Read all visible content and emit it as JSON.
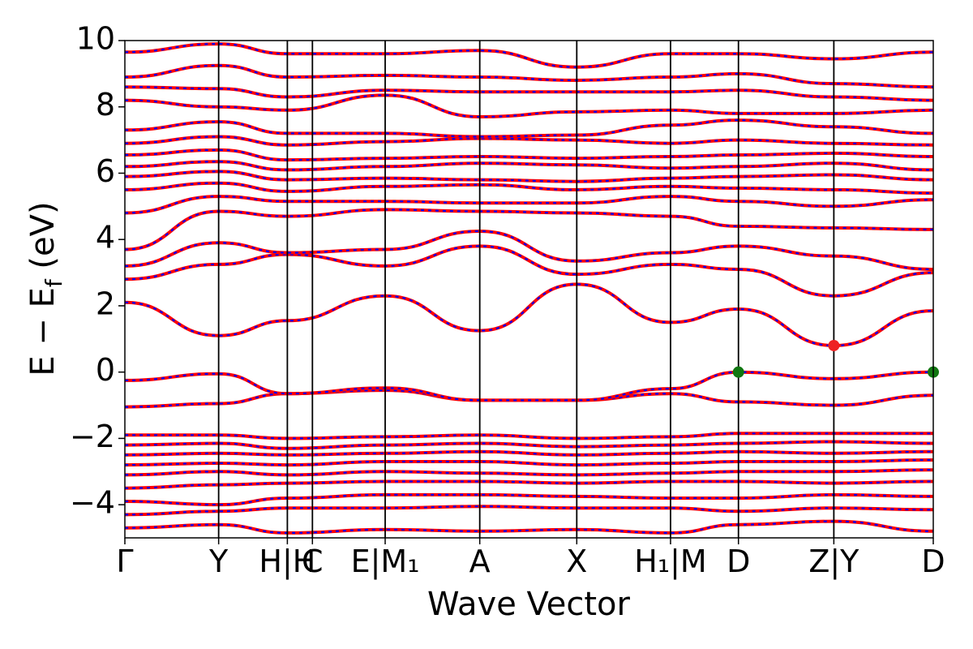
{
  "chart_data": {
    "type": "line",
    "title": "",
    "xlabel": "Wave Vector",
    "ylabel": "E − E_f (eV)",
    "ylabel_main": "E − E",
    "ylabel_sub": "f",
    "ylabel_unit": " (eV)",
    "ylim": [
      -5,
      10
    ],
    "yticks": [
      10,
      8,
      6,
      4,
      2,
      0,
      -2,
      -4
    ],
    "ytick_labels": [
      "10",
      "8",
      "6",
      "4",
      "2",
      "0",
      "−2",
      "−4"
    ],
    "grid": false,
    "legend": "none",
    "kpath": [
      {
        "label": "Γ",
        "x": 0.0
      },
      {
        "label": "Y",
        "x": 0.116
      },
      {
        "label": "H|H",
        "x": 0.201
      },
      {
        "label": "C",
        "x": 0.232
      },
      {
        "label": "E|M₁",
        "x": 0.322
      },
      {
        "label": "A",
        "x": 0.439
      },
      {
        "label": "X",
        "x": 0.559
      },
      {
        "label": "H₁|M",
        "x": 0.675
      },
      {
        "label": "D",
        "x": 0.759
      },
      {
        "label": "Z|Y",
        "x": 0.877
      },
      {
        "label": "D",
        "x": 1.0
      }
    ],
    "segment_breaks": [
      0.201,
      0.322,
      0.675,
      0.877
    ],
    "series": [
      {
        "name": "",
        "color": "#ff0000",
        "style": "solid"
      },
      {
        "name": "",
        "color": "#0000ff",
        "style": "dashed"
      }
    ],
    "bands": [
      [
        [
          0,
          -1.05
        ],
        [
          0.116,
          -0.95
        ],
        [
          0.201,
          -0.65
        ],
        [
          0.322,
          -0.55
        ],
        [
          0.439,
          -0.85
        ],
        [
          0.559,
          -0.85
        ],
        [
          0.675,
          -0.65
        ],
        [
          0.759,
          -0.9
        ],
        [
          0.877,
          -1.0
        ],
        [
          1.0,
          -0.7
        ]
      ],
      [
        [
          0,
          -0.25
        ],
        [
          0.116,
          -0.05
        ],
        [
          0.201,
          -0.65
        ],
        [
          0.322,
          -0.48
        ],
        [
          0.439,
          -0.85
        ],
        [
          0.559,
          -0.85
        ],
        [
          0.675,
          -0.5
        ],
        [
          0.759,
          0.0
        ],
        [
          0.877,
          -0.2
        ],
        [
          1.0,
          0.0
        ]
      ],
      [
        [
          0,
          2.1
        ],
        [
          0.116,
          1.1
        ],
        [
          0.201,
          1.55
        ],
        [
          0.322,
          2.3
        ],
        [
          0.439,
          1.25
        ],
        [
          0.559,
          2.65
        ],
        [
          0.675,
          1.5
        ],
        [
          0.759,
          1.9
        ],
        [
          0.877,
          0.8
        ],
        [
          1.0,
          1.85
        ]
      ],
      [
        [
          0,
          2.8
        ],
        [
          0.116,
          3.25
        ],
        [
          0.201,
          3.55
        ],
        [
          0.322,
          3.2
        ],
        [
          0.439,
          3.8
        ],
        [
          0.559,
          2.95
        ],
        [
          0.675,
          3.25
        ],
        [
          0.759,
          3.1
        ],
        [
          0.877,
          2.3
        ],
        [
          1.0,
          3.0
        ]
      ],
      [
        [
          0,
          3.2
        ],
        [
          0.116,
          3.9
        ],
        [
          0.201,
          3.6
        ],
        [
          0.322,
          3.7
        ],
        [
          0.439,
          4.25
        ],
        [
          0.559,
          3.35
        ],
        [
          0.675,
          3.6
        ],
        [
          0.759,
          3.8
        ],
        [
          0.877,
          3.5
        ],
        [
          1.0,
          3.1
        ]
      ],
      [
        [
          0,
          3.7
        ],
        [
          0.116,
          4.85
        ],
        [
          0.201,
          4.7
        ],
        [
          0.322,
          4.9
        ],
        [
          0.439,
          4.85
        ],
        [
          0.559,
          4.8
        ],
        [
          0.675,
          4.7
        ],
        [
          0.759,
          4.4
        ],
        [
          0.877,
          4.35
        ],
        [
          1.0,
          4.3
        ]
      ],
      [
        [
          0,
          4.8
        ],
        [
          0.116,
          5.3
        ],
        [
          0.201,
          5.15
        ],
        [
          0.322,
          5.15
        ],
        [
          0.439,
          5.1
        ],
        [
          0.559,
          5.1
        ],
        [
          0.675,
          5.3
        ],
        [
          0.759,
          5.15
        ],
        [
          0.877,
          5.0
        ],
        [
          1.0,
          5.2
        ]
      ],
      [
        [
          0,
          5.5
        ],
        [
          0.116,
          5.7
        ],
        [
          0.201,
          5.45
        ],
        [
          0.322,
          5.6
        ],
        [
          0.439,
          5.65
        ],
        [
          0.559,
          5.5
        ],
        [
          0.675,
          5.6
        ],
        [
          0.759,
          5.55
        ],
        [
          0.877,
          5.5
        ],
        [
          1.0,
          5.4
        ]
      ],
      [
        [
          0,
          5.9
        ],
        [
          0.116,
          6.05
        ],
        [
          0.201,
          5.8
        ],
        [
          0.322,
          5.85
        ],
        [
          0.439,
          5.8
        ],
        [
          0.559,
          5.75
        ],
        [
          0.675,
          5.85
        ],
        [
          0.759,
          5.9
        ],
        [
          0.877,
          5.95
        ],
        [
          1.0,
          5.8
        ]
      ],
      [
        [
          0,
          6.2
        ],
        [
          0.116,
          6.35
        ],
        [
          0.201,
          6.1
        ],
        [
          0.322,
          6.2
        ],
        [
          0.439,
          6.3
        ],
        [
          0.559,
          6.25
        ],
        [
          0.675,
          6.15
        ],
        [
          0.759,
          6.2
        ],
        [
          0.877,
          6.3
        ],
        [
          1.0,
          6.1
        ]
      ],
      [
        [
          0,
          6.55
        ],
        [
          0.116,
          6.7
        ],
        [
          0.201,
          6.4
        ],
        [
          0.322,
          6.45
        ],
        [
          0.439,
          6.5
        ],
        [
          0.559,
          6.45
        ],
        [
          0.675,
          6.5
        ],
        [
          0.759,
          6.55
        ],
        [
          0.877,
          6.6
        ],
        [
          1.0,
          6.5
        ]
      ],
      [
        [
          0,
          6.9
        ],
        [
          0.116,
          7.1
        ],
        [
          0.201,
          6.85
        ],
        [
          0.322,
          6.95
        ],
        [
          0.439,
          7.05
        ],
        [
          0.559,
          7.0
        ],
        [
          0.675,
          6.9
        ],
        [
          0.759,
          7.0
        ],
        [
          0.877,
          6.9
        ],
        [
          1.0,
          6.85
        ]
      ],
      [
        [
          0,
          7.3
        ],
        [
          0.116,
          7.55
        ],
        [
          0.201,
          7.2
        ],
        [
          0.322,
          7.2
        ],
        [
          0.439,
          7.1
        ],
        [
          0.559,
          7.15
        ],
        [
          0.675,
          7.45
        ],
        [
          0.759,
          7.6
        ],
        [
          0.877,
          7.4
        ],
        [
          1.0,
          7.2
        ]
      ],
      [
        [
          0,
          8.2
        ],
        [
          0.116,
          8.0
        ],
        [
          0.201,
          7.9
        ],
        [
          0.322,
          8.35
        ],
        [
          0.439,
          7.7
        ],
        [
          0.559,
          7.85
        ],
        [
          0.675,
          7.9
        ],
        [
          0.759,
          7.8
        ],
        [
          0.877,
          7.8
        ],
        [
          1.0,
          7.9
        ]
      ],
      [
        [
          0,
          8.6
        ],
        [
          0.116,
          8.55
        ],
        [
          0.201,
          8.3
        ],
        [
          0.322,
          8.5
        ],
        [
          0.439,
          8.45
        ],
        [
          0.559,
          8.45
        ],
        [
          0.675,
          8.45
        ],
        [
          0.759,
          8.5
        ],
        [
          0.877,
          8.3
        ],
        [
          1.0,
          8.2
        ]
      ],
      [
        [
          0,
          8.9
        ],
        [
          0.116,
          9.25
        ],
        [
          0.201,
          8.9
        ],
        [
          0.322,
          8.95
        ],
        [
          0.439,
          8.9
        ],
        [
          0.559,
          8.8
        ],
        [
          0.675,
          8.9
        ],
        [
          0.759,
          9.0
        ],
        [
          0.877,
          8.7
        ],
        [
          1.0,
          8.6
        ]
      ],
      [
        [
          0,
          9.65
        ],
        [
          0.116,
          9.9
        ],
        [
          0.201,
          9.6
        ],
        [
          0.322,
          9.6
        ],
        [
          0.439,
          9.7
        ],
        [
          0.559,
          9.2
        ],
        [
          0.675,
          9.6
        ],
        [
          0.759,
          9.6
        ],
        [
          0.877,
          9.45
        ],
        [
          1.0,
          9.65
        ]
      ],
      [
        [
          0,
          -1.9
        ],
        [
          0.116,
          -1.9
        ],
        [
          0.201,
          -2.0
        ],
        [
          0.322,
          -1.95
        ],
        [
          0.439,
          -1.9
        ],
        [
          0.559,
          -2.0
        ],
        [
          0.675,
          -1.95
        ],
        [
          0.759,
          -1.85
        ],
        [
          0.877,
          -1.85
        ],
        [
          1.0,
          -1.85
        ]
      ],
      [
        [
          0,
          -2.2
        ],
        [
          0.116,
          -2.15
        ],
        [
          0.201,
          -2.3
        ],
        [
          0.322,
          -2.2
        ],
        [
          0.439,
          -2.15
        ],
        [
          0.559,
          -2.25
        ],
        [
          0.675,
          -2.2
        ],
        [
          0.759,
          -2.15
        ],
        [
          0.877,
          -2.1
        ],
        [
          1.0,
          -2.15
        ]
      ],
      [
        [
          0,
          -2.5
        ],
        [
          0.116,
          -2.45
        ],
        [
          0.201,
          -2.5
        ],
        [
          0.322,
          -2.45
        ],
        [
          0.439,
          -2.4
        ],
        [
          0.559,
          -2.5
        ],
        [
          0.675,
          -2.45
        ],
        [
          0.759,
          -2.4
        ],
        [
          0.877,
          -2.45
        ],
        [
          1.0,
          -2.4
        ]
      ],
      [
        [
          0,
          -2.8
        ],
        [
          0.116,
          -2.75
        ],
        [
          0.201,
          -2.8
        ],
        [
          0.322,
          -2.7
        ],
        [
          0.439,
          -2.7
        ],
        [
          0.559,
          -2.8
        ],
        [
          0.675,
          -2.75
        ],
        [
          0.759,
          -2.7
        ],
        [
          0.877,
          -2.7
        ],
        [
          1.0,
          -2.65
        ]
      ],
      [
        [
          0,
          -3.1
        ],
        [
          0.116,
          -3.0
        ],
        [
          0.201,
          -3.1
        ],
        [
          0.322,
          -3.0
        ],
        [
          0.439,
          -3.05
        ],
        [
          0.559,
          -3.1
        ],
        [
          0.675,
          -3.05
        ],
        [
          0.759,
          -3.0
        ],
        [
          0.877,
          -3.0
        ],
        [
          1.0,
          -2.95
        ]
      ],
      [
        [
          0,
          -3.5
        ],
        [
          0.116,
          -3.4
        ],
        [
          0.201,
          -3.35
        ],
        [
          0.322,
          -3.3
        ],
        [
          0.439,
          -3.3
        ],
        [
          0.559,
          -3.35
        ],
        [
          0.675,
          -3.3
        ],
        [
          0.759,
          -3.3
        ],
        [
          0.877,
          -3.35
        ],
        [
          1.0,
          -3.3
        ]
      ],
      [
        [
          0,
          -3.9
        ],
        [
          0.116,
          -4.0
        ],
        [
          0.201,
          -3.8
        ],
        [
          0.322,
          -3.7
        ],
        [
          0.439,
          -3.7
        ],
        [
          0.559,
          -3.75
        ],
        [
          0.675,
          -3.8
        ],
        [
          0.759,
          -3.8
        ],
        [
          0.877,
          -3.7
        ],
        [
          1.0,
          -3.75
        ]
      ],
      [
        [
          0,
          -4.3
        ],
        [
          0.116,
          -4.2
        ],
        [
          0.201,
          -4.1
        ],
        [
          0.322,
          -4.1
        ],
        [
          0.439,
          -4.05
        ],
        [
          0.559,
          -4.1
        ],
        [
          0.675,
          -4.1
        ],
        [
          0.759,
          -4.2
        ],
        [
          0.877,
          -4.1
        ],
        [
          1.0,
          -4.15
        ]
      ],
      [
        [
          0,
          -4.7
        ],
        [
          0.116,
          -4.6
        ],
        [
          0.201,
          -4.85
        ],
        [
          0.322,
          -4.75
        ],
        [
          0.439,
          -4.8
        ],
        [
          0.559,
          -4.75
        ],
        [
          0.675,
          -4.85
        ],
        [
          0.759,
          -4.6
        ],
        [
          0.877,
          -4.5
        ],
        [
          1.0,
          -4.8
        ]
      ]
    ],
    "markers": [
      {
        "x": 0.759,
        "y": 0.0,
        "color": "#117711"
      },
      {
        "x": 1.0,
        "y": 0.0,
        "color": "#117711"
      },
      {
        "x": 0.877,
        "y": 0.8,
        "color": "#ee2222"
      }
    ]
  }
}
